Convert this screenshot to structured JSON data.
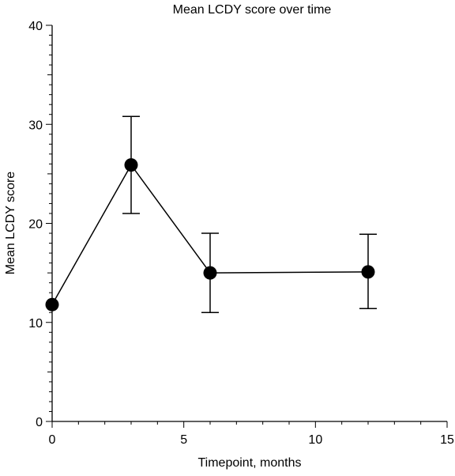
{
  "chart_data": {
    "type": "scatter",
    "title": "Mean LCDY score over time",
    "xlabel": "Timepoint, months",
    "ylabel": "Mean LCDY score",
    "xlim": [
      0,
      15
    ],
    "ylim": [
      0,
      40
    ],
    "x_ticks": [
      0,
      5,
      10,
      15
    ],
    "y_ticks": [
      0,
      10,
      20,
      30,
      40
    ],
    "grid": false,
    "series": [
      {
        "x": [
          0,
          3,
          6,
          12
        ],
        "y": [
          11.8,
          25.9,
          15.0,
          15.1
        ],
        "err_low": [
          null,
          21.0,
          11.0,
          11.4
        ],
        "err_high": [
          null,
          30.8,
          19.0,
          18.9
        ],
        "color": "#000000",
        "connected": true,
        "marker": "circle"
      }
    ]
  }
}
